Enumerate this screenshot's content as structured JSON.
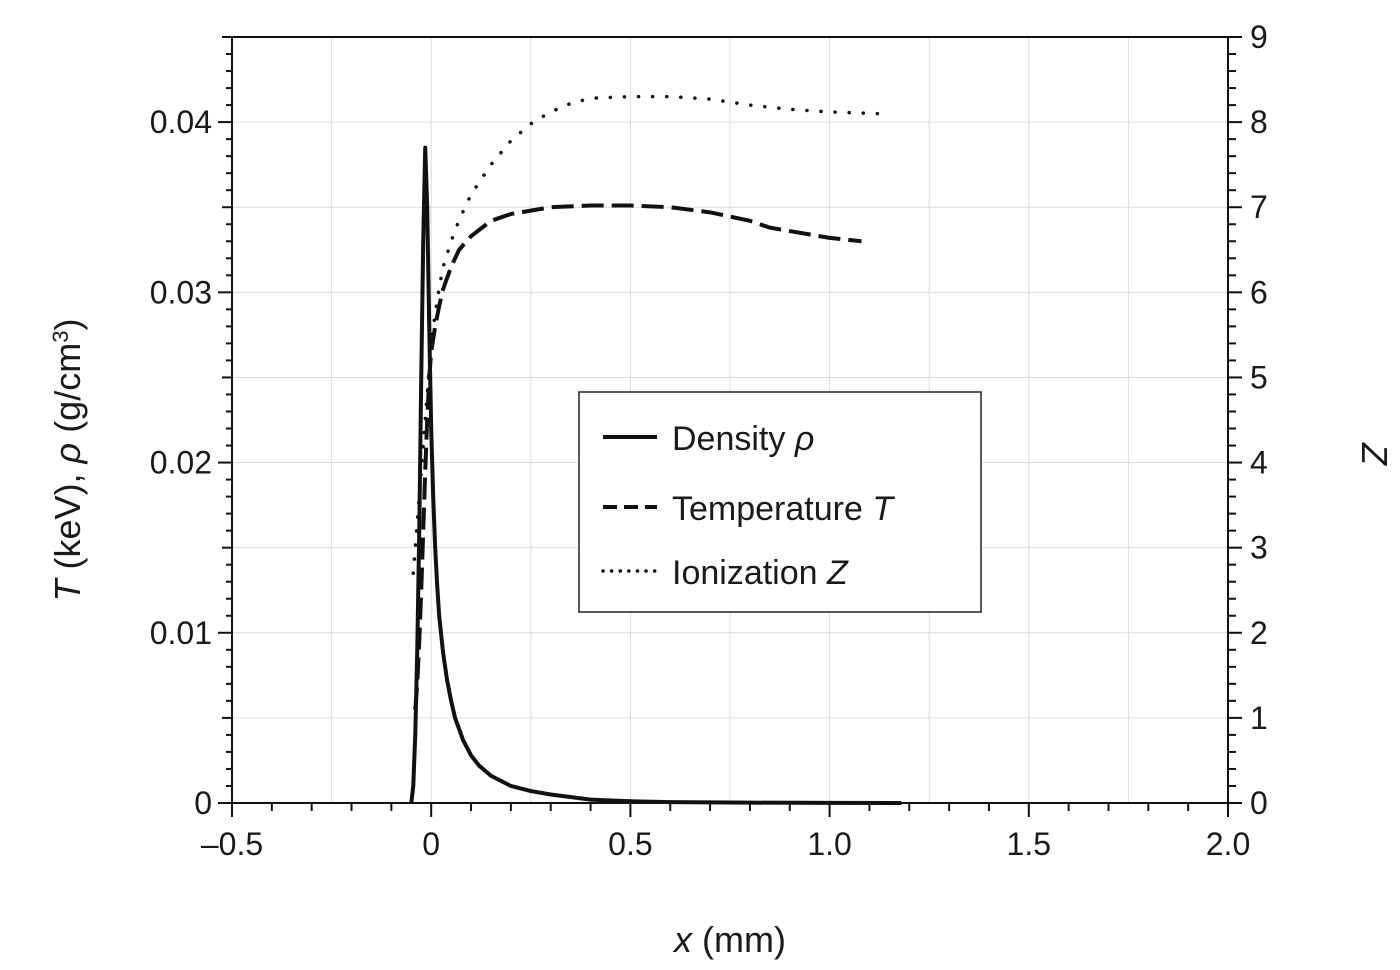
{
  "chart_data": {
    "type": "line",
    "xlabel": {
      "var": "x",
      "unit": " (mm)"
    },
    "ylabel_left": {
      "t": "T",
      "mid1": " (keV), ",
      "rho": "ρ",
      "mid2": " (g/cm",
      "sup": "3",
      "end": ")"
    },
    "ylabel_right": "Z",
    "xlim": [
      -0.5,
      2.0
    ],
    "ylim_left": [
      0,
      0.045
    ],
    "ylim_right": [
      0,
      9
    ],
    "x_ticks": [
      {
        "value": -0.5,
        "label": "–0.5"
      },
      {
        "value": 0,
        "label": "0"
      },
      {
        "value": 0.5,
        "label": "0.5"
      },
      {
        "value": 1.0,
        "label": "1.0"
      },
      {
        "value": 1.5,
        "label": "1.5"
      },
      {
        "value": 2.0,
        "label": "2.0"
      }
    ],
    "y_left_ticks": [
      {
        "value": 0,
        "label": "0"
      },
      {
        "value": 0.01,
        "label": "0.01"
      },
      {
        "value": 0.02,
        "label": "0.02"
      },
      {
        "value": 0.03,
        "label": "0.03"
      },
      {
        "value": 0.04,
        "label": "0.04"
      }
    ],
    "y_right_ticks": [
      {
        "value": 0,
        "label": "0"
      },
      {
        "value": 1,
        "label": "1"
      },
      {
        "value": 2,
        "label": "2"
      },
      {
        "value": 3,
        "label": "3"
      },
      {
        "value": 4,
        "label": "4"
      },
      {
        "value": 5,
        "label": "5"
      },
      {
        "value": 6,
        "label": "6"
      },
      {
        "value": 7,
        "label": "7"
      },
      {
        "value": 8,
        "label": "8"
      },
      {
        "value": 9,
        "label": "9"
      }
    ],
    "grid": true,
    "legend_position": "center",
    "series": [
      {
        "name": "Density ",
        "symbol": "ρ",
        "style": "solid",
        "axis": "left",
        "color": "#111111",
        "x": [
          -0.05,
          -0.045,
          -0.04,
          -0.035,
          -0.03,
          -0.025,
          -0.02,
          -0.015,
          -0.01,
          -0.005,
          0.0,
          0.005,
          0.01,
          0.015,
          0.02,
          0.03,
          0.04,
          0.05,
          0.06,
          0.08,
          0.1,
          0.12,
          0.15,
          0.2,
          0.25,
          0.3,
          0.4,
          0.5,
          0.6,
          0.8,
          1.0,
          1.18
        ],
        "y": [
          0.0,
          0.001,
          0.004,
          0.009,
          0.016,
          0.025,
          0.033,
          0.0385,
          0.035,
          0.028,
          0.022,
          0.018,
          0.015,
          0.0128,
          0.011,
          0.0088,
          0.0072,
          0.006,
          0.005,
          0.0037,
          0.0028,
          0.0022,
          0.0016,
          0.001,
          0.0007,
          0.0005,
          0.0002,
          0.0001,
          5e-05,
          2e-05,
          1e-05,
          0.0
        ]
      },
      {
        "name": "Temperature ",
        "symbol": "T",
        "style": "dashed",
        "axis": "left",
        "color": "#111111",
        "x": [
          -0.04,
          -0.035,
          -0.03,
          -0.025,
          -0.02,
          -0.015,
          -0.01,
          -0.005,
          0.0,
          0.01,
          0.02,
          0.03,
          0.05,
          0.07,
          0.1,
          0.15,
          0.2,
          0.25,
          0.3,
          0.4,
          0.5,
          0.6,
          0.7,
          0.8,
          0.85,
          0.9,
          1.0,
          1.08
        ],
        "y": [
          0.0055,
          0.007,
          0.0095,
          0.0125,
          0.016,
          0.0195,
          0.0225,
          0.025,
          0.0265,
          0.028,
          0.0292,
          0.0302,
          0.0315,
          0.0325,
          0.0333,
          0.0342,
          0.0346,
          0.0348,
          0.035,
          0.0351,
          0.0351,
          0.035,
          0.0347,
          0.0342,
          0.0338,
          0.0336,
          0.0332,
          0.033
        ]
      },
      {
        "name": "Ionization ",
        "symbol": "Z",
        "style": "dotted",
        "axis": "right",
        "color": "#111111",
        "x": [
          -0.045,
          -0.04,
          -0.035,
          -0.03,
          -0.025,
          -0.02,
          -0.015,
          -0.01,
          -0.005,
          0.0,
          0.01,
          0.02,
          0.03,
          0.05,
          0.07,
          0.1,
          0.15,
          0.2,
          0.25,
          0.3,
          0.35,
          0.4,
          0.5,
          0.6,
          0.7,
          0.8,
          0.9,
          1.0,
          1.12
        ],
        "y": [
          2.7,
          3.0,
          3.3,
          3.6,
          3.9,
          4.2,
          4.5,
          4.8,
          5.1,
          5.4,
          5.75,
          6.05,
          6.3,
          6.6,
          6.85,
          7.15,
          7.5,
          7.78,
          7.98,
          8.12,
          8.22,
          8.28,
          8.3,
          8.3,
          8.27,
          8.2,
          8.15,
          8.12,
          8.1
        ]
      }
    ]
  }
}
